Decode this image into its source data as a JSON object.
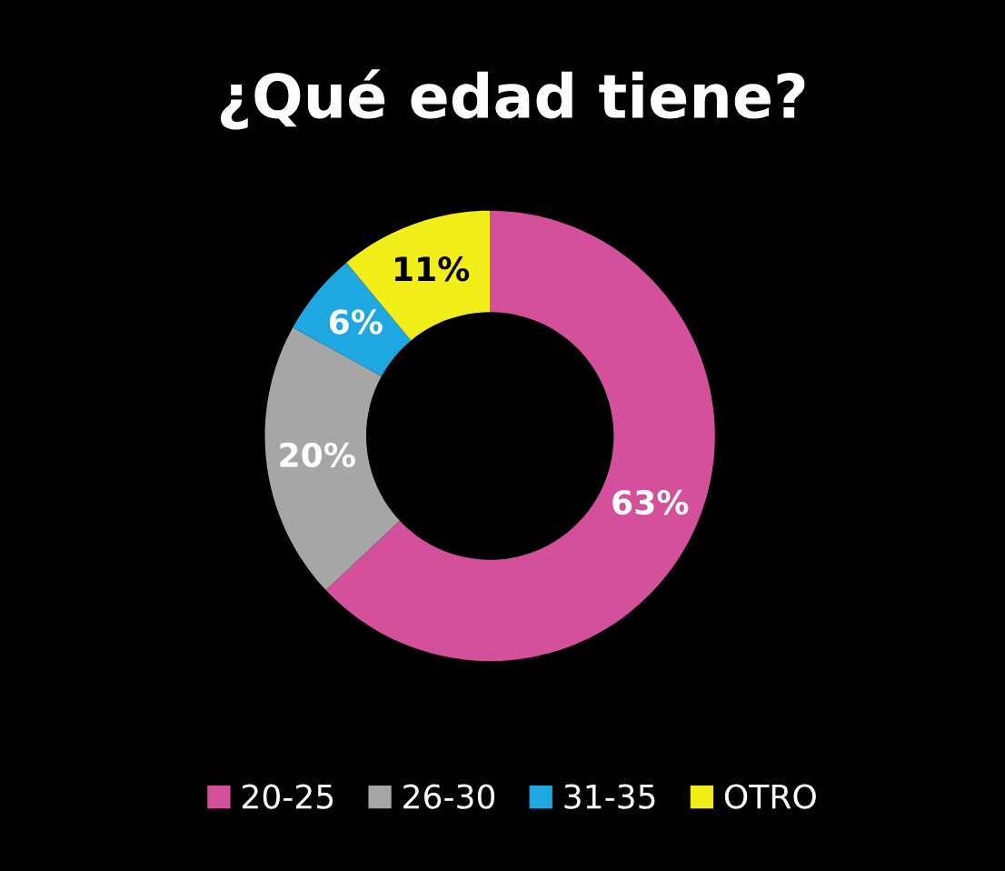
{
  "chart_data": {
    "type": "donut",
    "title": "¿Qué edad tiene?",
    "categories": [
      "20-25",
      "26-30",
      "31-35",
      "OTRO"
    ],
    "values": [
      63,
      20,
      6,
      11
    ],
    "colors": [
      "#d4509a",
      "#a6a6a6",
      "#1ea7e1",
      "#f2ee1a"
    ],
    "value_labels": [
      "63%",
      "20%",
      "6%",
      "11%"
    ],
    "legend": "bottom"
  }
}
